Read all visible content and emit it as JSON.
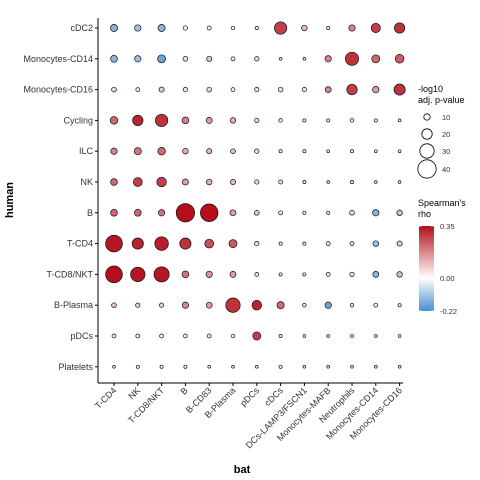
{
  "chart_data": {
    "type": "dot-heatmap",
    "xlabel": "bat",
    "ylabel": "human",
    "x_categories": [
      "T-CD4",
      "NK",
      "T-CD8/NKT",
      "B",
      "B-CD83",
      "B-Plasma",
      "pDCs",
      "cDCs",
      "DCs-LAMP3/FSCN1",
      "Monocytes-MAFB",
      "Neutrophils",
      "Monocytes-CD14",
      "Monocytes-CD16"
    ],
    "y_categories": [
      "cDC2",
      "Monocytes-CD14",
      "Monocytes-CD16",
      "Cycling",
      "ILC",
      "NK",
      "B",
      "T-CD4",
      "T-CD8/NKT",
      "B-Plasma",
      "pDCs",
      "Platelets"
    ],
    "size_legend": {
      "title_line1": "-log10",
      "title_line2": "adj. p-value",
      "values": [
        10,
        20,
        30,
        40
      ],
      "labels": [
        "10",
        "20",
        "30",
        "40"
      ]
    },
    "color_legend": {
      "title_line1": "Spearman's",
      "title_line2": "rho",
      "min": -0.22,
      "max": 0.35,
      "ticks": [
        0.35,
        0.0,
        -0.22
      ],
      "tick_labels": [
        "0.35",
        "0.00",
        "-0.22"
      ],
      "low_color": "#4a8fcc",
      "mid_color": "#ffffff",
      "high_color": "#b30f1d"
    },
    "cells": [
      {
        "y": "cDC2",
        "x": "T-CD4",
        "rho": -0.15,
        "size": 12
      },
      {
        "y": "cDC2",
        "x": "NK",
        "rho": -0.12,
        "size": 10
      },
      {
        "y": "cDC2",
        "x": "T-CD8/NKT",
        "rho": -0.15,
        "size": 12
      },
      {
        "y": "cDC2",
        "x": "B",
        "rho": 0.02,
        "size": 5
      },
      {
        "y": "cDC2",
        "x": "B-CD83",
        "rho": -0.02,
        "size": 4
      },
      {
        "y": "cDC2",
        "x": "B-Plasma",
        "rho": 0.02,
        "size": 3
      },
      {
        "y": "cDC2",
        "x": "pDCs",
        "rho": 0.01,
        "size": 2
      },
      {
        "y": "cDC2",
        "x": "cDCs",
        "rho": 0.28,
        "size": 25
      },
      {
        "y": "cDC2",
        "x": "DCs-LAMP3/FSCN1",
        "rho": 0.1,
        "size": 8
      },
      {
        "y": "cDC2",
        "x": "Monocytes-MAFB",
        "rho": 0.01,
        "size": 2
      },
      {
        "y": "cDC2",
        "x": "Neutrophils",
        "rho": 0.18,
        "size": 10
      },
      {
        "y": "cDC2",
        "x": "Monocytes-CD14",
        "rho": 0.28,
        "size": 17
      },
      {
        "y": "cDC2",
        "x": "Monocytes-CD16",
        "rho": 0.3,
        "size": 20
      },
      {
        "y": "Monocytes-CD14",
        "x": "T-CD4",
        "rho": -0.14,
        "size": 11
      },
      {
        "y": "Monocytes-CD14",
        "x": "NK",
        "rho": -0.12,
        "size": 10
      },
      {
        "y": "Monocytes-CD14",
        "x": "T-CD8/NKT",
        "rho": -0.18,
        "size": 14
      },
      {
        "y": "Monocytes-CD14",
        "x": "B",
        "rho": -0.05,
        "size": 6
      },
      {
        "y": "Monocytes-CD14",
        "x": "B-CD83",
        "rho": -0.08,
        "size": 7
      },
      {
        "y": "Monocytes-CD14",
        "x": "B-Plasma",
        "rho": -0.02,
        "size": 4
      },
      {
        "y": "Monocytes-CD14",
        "x": "pDCs",
        "rho": -0.04,
        "size": 5
      },
      {
        "y": "Monocytes-CD14",
        "x": "cDCs",
        "rho": 0.01,
        "size": 1
      },
      {
        "y": "Monocytes-CD14",
        "x": "DCs-LAMP3/FSCN1",
        "rho": 0.01,
        "size": 1
      },
      {
        "y": "Monocytes-CD14",
        "x": "Monocytes-MAFB",
        "rho": 0.18,
        "size": 10
      },
      {
        "y": "Monocytes-CD14",
        "x": "Neutrophils",
        "rho": 0.3,
        "size": 27
      },
      {
        "y": "Monocytes-CD14",
        "x": "Monocytes-CD14",
        "rho": 0.22,
        "size": 14
      },
      {
        "y": "Monocytes-CD14",
        "x": "Monocytes-CD16",
        "rho": 0.24,
        "size": 16
      },
      {
        "y": "Monocytes-CD16",
        "x": "T-CD4",
        "rho": -0.06,
        "size": 6
      },
      {
        "y": "Monocytes-CD16",
        "x": "NK",
        "rho": -0.03,
        "size": 4
      },
      {
        "y": "Monocytes-CD16",
        "x": "T-CD8/NKT",
        "rho": -0.08,
        "size": 7
      },
      {
        "y": "Monocytes-CD16",
        "x": "B",
        "rho": -0.04,
        "size": 5
      },
      {
        "y": "Monocytes-CD16",
        "x": "B-CD83",
        "rho": -0.06,
        "size": 6
      },
      {
        "y": "Monocytes-CD16",
        "x": "B-Plasma",
        "rho": -0.02,
        "size": 4
      },
      {
        "y": "Monocytes-CD16",
        "x": "pDCs",
        "rho": -0.05,
        "size": 5
      },
      {
        "y": "Monocytes-CD16",
        "x": "cDCs",
        "rho": 0.06,
        "size": 6
      },
      {
        "y": "Monocytes-CD16",
        "x": "DCs-LAMP3/FSCN1",
        "rho": 0.04,
        "size": 5
      },
      {
        "y": "Monocytes-CD16",
        "x": "Monocytes-MAFB",
        "rho": 0.18,
        "size": 9
      },
      {
        "y": "Monocytes-CD16",
        "x": "Neutrophils",
        "rho": 0.28,
        "size": 20
      },
      {
        "y": "Monocytes-CD16",
        "x": "Monocytes-CD14",
        "rho": 0.14,
        "size": 10
      },
      {
        "y": "Monocytes-CD16",
        "x": "Monocytes-CD16",
        "rho": 0.3,
        "size": 22
      },
      {
        "y": "Cycling",
        "x": "T-CD4",
        "rho": 0.22,
        "size": 13
      },
      {
        "y": "Cycling",
        "x": "NK",
        "rho": 0.32,
        "size": 20
      },
      {
        "y": "Cycling",
        "x": "T-CD8/NKT",
        "rho": 0.3,
        "size": 25
      },
      {
        "y": "Cycling",
        "x": "B",
        "rho": 0.18,
        "size": 11
      },
      {
        "y": "Cycling",
        "x": "B-CD83",
        "rho": 0.14,
        "size": 9
      },
      {
        "y": "Cycling",
        "x": "B-Plasma",
        "rho": 0.12,
        "size": 8
      },
      {
        "y": "Cycling",
        "x": "pDCs",
        "rho": 0.06,
        "size": 5
      },
      {
        "y": "Cycling",
        "x": "cDCs",
        "rho": 0.03,
        "size": 3
      },
      {
        "y": "Cycling",
        "x": "DCs-LAMP3/FSCN1",
        "rho": 0.02,
        "size": 2
      },
      {
        "y": "Cycling",
        "x": "Monocytes-MAFB",
        "rho": 0.02,
        "size": 2
      },
      {
        "y": "Cycling",
        "x": "Neutrophils",
        "rho": 0.03,
        "size": 3
      },
      {
        "y": "Cycling",
        "x": "Monocytes-CD14",
        "rho": 0.01,
        "size": 2
      },
      {
        "y": "Cycling",
        "x": "Monocytes-CD16",
        "rho": 0.01,
        "size": 1
      },
      {
        "y": "ILC",
        "x": "T-CD4",
        "rho": 0.18,
        "size": 10
      },
      {
        "y": "ILC",
        "x": "NK",
        "rho": 0.2,
        "size": 12
      },
      {
        "y": "ILC",
        "x": "T-CD8/NKT",
        "rho": 0.22,
        "size": 13
      },
      {
        "y": "ILC",
        "x": "B",
        "rho": 0.12,
        "size": 8
      },
      {
        "y": "ILC",
        "x": "B-CD83",
        "rho": 0.1,
        "size": 7
      },
      {
        "y": "ILC",
        "x": "B-Plasma",
        "rho": 0.1,
        "size": 6
      },
      {
        "y": "ILC",
        "x": "pDCs",
        "rho": 0.06,
        "size": 5
      },
      {
        "y": "ILC",
        "x": "cDCs",
        "rho": 0.02,
        "size": 2
      },
      {
        "y": "ILC",
        "x": "DCs-LAMP3/FSCN1",
        "rho": 0.02,
        "size": 2
      },
      {
        "y": "ILC",
        "x": "Monocytes-MAFB",
        "rho": 0.01,
        "size": 1
      },
      {
        "y": "ILC",
        "x": "Neutrophils",
        "rho": 0.02,
        "size": 2
      },
      {
        "y": "ILC",
        "x": "Monocytes-CD14",
        "rho": 0.01,
        "size": 1
      },
      {
        "y": "ILC",
        "x": "Monocytes-CD16",
        "rho": 0.01,
        "size": 1
      },
      {
        "y": "NK",
        "x": "T-CD4",
        "rho": 0.22,
        "size": 11
      },
      {
        "y": "NK",
        "x": "NK",
        "rho": 0.28,
        "size": 16
      },
      {
        "y": "NK",
        "x": "T-CD8/NKT",
        "rho": 0.28,
        "size": 18
      },
      {
        "y": "NK",
        "x": "B",
        "rho": 0.14,
        "size": 9
      },
      {
        "y": "NK",
        "x": "B-CD83",
        "rho": 0.12,
        "size": 8
      },
      {
        "y": "NK",
        "x": "B-Plasma",
        "rho": 0.1,
        "size": 7
      },
      {
        "y": "NK",
        "x": "pDCs",
        "rho": 0.06,
        "size": 5
      },
      {
        "y": "NK",
        "x": "cDCs",
        "rho": 0.04,
        "size": 4
      },
      {
        "y": "NK",
        "x": "DCs-LAMP3/FSCN1",
        "rho": 0.02,
        "size": 2
      },
      {
        "y": "NK",
        "x": "Monocytes-MAFB",
        "rho": 0.01,
        "size": 1
      },
      {
        "y": "NK",
        "x": "Neutrophils",
        "rho": 0.02,
        "size": 2
      },
      {
        "y": "NK",
        "x": "Monocytes-CD14",
        "rho": 0.01,
        "size": 1
      },
      {
        "y": "NK",
        "x": "Monocytes-CD16",
        "rho": 0.01,
        "size": 1
      },
      {
        "y": "B",
        "x": "T-CD4",
        "rho": 0.22,
        "size": 11
      },
      {
        "y": "B",
        "x": "NK",
        "rho": 0.22,
        "size": 11
      },
      {
        "y": "B",
        "x": "T-CD8/NKT",
        "rho": 0.2,
        "size": 10
      },
      {
        "y": "B",
        "x": "B",
        "rho": 0.35,
        "size": 40
      },
      {
        "y": "B",
        "x": "B-CD83",
        "rho": 0.35,
        "size": 38
      },
      {
        "y": "B",
        "x": "B-Plasma",
        "rho": 0.14,
        "size": 9
      },
      {
        "y": "B",
        "x": "pDCs",
        "rho": 0.08,
        "size": 6
      },
      {
        "y": "B",
        "x": "cDCs",
        "rho": 0.04,
        "size": 4
      },
      {
        "y": "B",
        "x": "DCs-LAMP3/FSCN1",
        "rho": 0.01,
        "size": 2
      },
      {
        "y": "B",
        "x": "Monocytes-MAFB",
        "rho": 0.01,
        "size": 2
      },
      {
        "y": "B",
        "x": "Neutrophils",
        "rho": -0.06,
        "size": 6
      },
      {
        "y": "B",
        "x": "Monocytes-CD14",
        "rho": -0.15,
        "size": 10
      },
      {
        "y": "B",
        "x": "Monocytes-CD16",
        "rho": -0.1,
        "size": 8
      },
      {
        "y": "T-CD4",
        "x": "T-CD4",
        "rho": 0.34,
        "size": 36
      },
      {
        "y": "T-CD4",
        "x": "NK",
        "rho": 0.32,
        "size": 22
      },
      {
        "y": "T-CD4",
        "x": "T-CD8/NKT",
        "rho": 0.33,
        "size": 28
      },
      {
        "y": "T-CD4",
        "x": "B",
        "rho": 0.3,
        "size": 22
      },
      {
        "y": "T-CD4",
        "x": "B-CD83",
        "rho": 0.26,
        "size": 16
      },
      {
        "y": "T-CD4",
        "x": "B-Plasma",
        "rho": 0.24,
        "size": 14
      },
      {
        "y": "T-CD4",
        "x": "pDCs",
        "rho": 0.06,
        "size": 5
      },
      {
        "y": "T-CD4",
        "x": "cDCs",
        "rho": 0.02,
        "size": 2
      },
      {
        "y": "T-CD4",
        "x": "DCs-LAMP3/FSCN1",
        "rho": -0.02,
        "size": 2
      },
      {
        "y": "T-CD4",
        "x": "Monocytes-MAFB",
        "rho": -0.04,
        "size": 4
      },
      {
        "y": "T-CD4",
        "x": "Neutrophils",
        "rho": -0.04,
        "size": 4
      },
      {
        "y": "T-CD4",
        "x": "Monocytes-CD14",
        "rho": -0.12,
        "size": 8
      },
      {
        "y": "T-CD4",
        "x": "Monocytes-CD16",
        "rho": -0.08,
        "size": 7
      },
      {
        "y": "T-CD8/NKT",
        "x": "T-CD4",
        "rho": 0.35,
        "size": 36
      },
      {
        "y": "T-CD8/NKT",
        "x": "NK",
        "rho": 0.34,
        "size": 30
      },
      {
        "y": "T-CD8/NKT",
        "x": "T-CD8/NKT",
        "rho": 0.34,
        "size": 32
      },
      {
        "y": "T-CD8/NKT",
        "x": "B",
        "rho": 0.2,
        "size": 11
      },
      {
        "y": "T-CD8/NKT",
        "x": "B-CD83",
        "rho": 0.16,
        "size": 10
      },
      {
        "y": "T-CD8/NKT",
        "x": "B-Plasma",
        "rho": 0.14,
        "size": 9
      },
      {
        "y": "T-CD8/NKT",
        "x": "pDCs",
        "rho": 0.04,
        "size": 4
      },
      {
        "y": "T-CD8/NKT",
        "x": "cDCs",
        "rho": 0.02,
        "size": 2
      },
      {
        "y": "T-CD8/NKT",
        "x": "DCs-LAMP3/FSCN1",
        "rho": -0.02,
        "size": 2
      },
      {
        "y": "T-CD8/NKT",
        "x": "Monocytes-MAFB",
        "rho": -0.04,
        "size": 4
      },
      {
        "y": "T-CD8/NKT",
        "x": "Neutrophils",
        "rho": -0.05,
        "size": 5
      },
      {
        "y": "T-CD8/NKT",
        "x": "Monocytes-CD14",
        "rho": -0.14,
        "size": 9
      },
      {
        "y": "T-CD8/NKT",
        "x": "Monocytes-CD16",
        "rho": -0.1,
        "size": 8
      },
      {
        "y": "B-Plasma",
        "x": "T-CD4",
        "rho": 0.1,
        "size": 6
      },
      {
        "y": "B-Plasma",
        "x": "NK",
        "rho": 0.08,
        "size": 5
      },
      {
        "y": "B-Plasma",
        "x": "T-CD8/NKT",
        "rho": 0.08,
        "size": 5
      },
      {
        "y": "B-Plasma",
        "x": "B",
        "rho": 0.18,
        "size": 10
      },
      {
        "y": "B-Plasma",
        "x": "B-CD83",
        "rho": 0.14,
        "size": 9
      },
      {
        "y": "B-Plasma",
        "x": "B-Plasma",
        "rho": 0.3,
        "size": 30
      },
      {
        "y": "B-Plasma",
        "x": "pDCs",
        "rho": 0.32,
        "size": 18
      },
      {
        "y": "B-Plasma",
        "x": "cDCs",
        "rho": 0.22,
        "size": 12
      },
      {
        "y": "B-Plasma",
        "x": "DCs-LAMP3/FSCN1",
        "rho": 0.04,
        "size": 3
      },
      {
        "y": "B-Plasma",
        "x": "Monocytes-MAFB",
        "rho": -0.18,
        "size": 10
      },
      {
        "y": "B-Plasma",
        "x": "Neutrophils",
        "rho": 0.04,
        "size": 3
      },
      {
        "y": "B-Plasma",
        "x": "Monocytes-CD14",
        "rho": -0.04,
        "size": 4
      },
      {
        "y": "B-Plasma",
        "x": "Monocytes-CD16",
        "rho": 0.02,
        "size": 2
      },
      {
        "y": "pDCs",
        "x": "T-CD4",
        "rho": 0.04,
        "size": 4
      },
      {
        "y": "pDCs",
        "x": "NK",
        "rho": 0.04,
        "size": 4
      },
      {
        "y": "pDCs",
        "x": "T-CD8/NKT",
        "rho": 0.03,
        "size": 4
      },
      {
        "y": "pDCs",
        "x": "B",
        "rho": 0.04,
        "size": 4
      },
      {
        "y": "pDCs",
        "x": "B-CD83",
        "rho": 0.04,
        "size": 4
      },
      {
        "y": "pDCs",
        "x": "B-Plasma",
        "rho": 0.03,
        "size": 3
      },
      {
        "y": "pDCs",
        "x": "pDCs",
        "rho": 0.28,
        "size": 14
      },
      {
        "y": "pDCs",
        "x": "cDCs",
        "rho": 0.02,
        "size": 2
      },
      {
        "y": "pDCs",
        "x": "DCs-LAMP3/FSCN1",
        "rho": 0.01,
        "size": 1
      },
      {
        "y": "pDCs",
        "x": "Monocytes-MAFB",
        "rho": 0.01,
        "size": 1
      },
      {
        "y": "pDCs",
        "x": "Neutrophils",
        "rho": 0.01,
        "size": 1
      },
      {
        "y": "pDCs",
        "x": "Monocytes-CD14",
        "rho": 0.01,
        "size": 1
      },
      {
        "y": "pDCs",
        "x": "Monocytes-CD16",
        "rho": 0.01,
        "size": 1
      },
      {
        "y": "Platelets",
        "x": "T-CD4",
        "rho": 0.01,
        "size": 1
      },
      {
        "y": "Platelets",
        "x": "NK",
        "rho": 0.02,
        "size": 2
      },
      {
        "y": "Platelets",
        "x": "T-CD8/NKT",
        "rho": 0.02,
        "size": 2
      },
      {
        "y": "Platelets",
        "x": "B",
        "rho": 0.02,
        "size": 2
      },
      {
        "y": "Platelets",
        "x": "B-CD83",
        "rho": 0.01,
        "size": 1
      },
      {
        "y": "Platelets",
        "x": "B-Plasma",
        "rho": 0.01,
        "size": 1
      },
      {
        "y": "Platelets",
        "x": "pDCs",
        "rho": 0.01,
        "size": 1
      },
      {
        "y": "Platelets",
        "x": "cDCs",
        "rho": 0.02,
        "size": 2
      },
      {
        "y": "Platelets",
        "x": "DCs-LAMP3/FSCN1",
        "rho": 0.01,
        "size": 1
      },
      {
        "y": "Platelets",
        "x": "Monocytes-MAFB",
        "rho": 0.01,
        "size": 1
      },
      {
        "y": "Platelets",
        "x": "Neutrophils",
        "rho": 0.01,
        "size": 1
      },
      {
        "y": "Platelets",
        "x": "Monocytes-CD14",
        "rho": 0.01,
        "size": 1
      },
      {
        "y": "Platelets",
        "x": "Monocytes-CD16",
        "rho": 0.01,
        "size": 1
      }
    ]
  }
}
